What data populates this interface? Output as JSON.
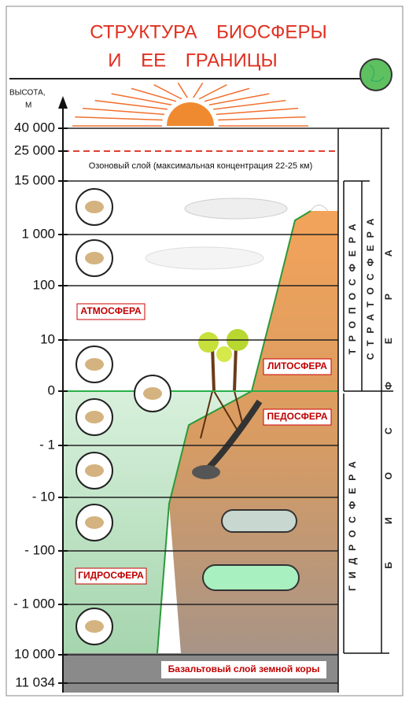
{
  "title": {
    "line1": "СТРУКТУРА БИОСФЕРЫ",
    "line2": "И ЕЕ ГРАНИЦЫ"
  },
  "axis": {
    "label_line1": "ВЫСОТА,",
    "label_line2": "М",
    "ticks": [
      "40 000",
      "25 000",
      "15 000",
      "1 000",
      "100",
      "10",
      "0",
      "- 1",
      "- 10",
      "- 100",
      "- 1 000",
      "10 000",
      "11 034"
    ]
  },
  "ozone_label": "Озоновый слой (максимальная концентрация 22-25 км)",
  "zones": {
    "atmosphere": "АТМОСФЕРА",
    "lithosphere": "ЛИТОСФЕРА",
    "pedosphere": "ПЕДОСФЕРА",
    "hydrosphere": "ГИДРОСФЕРА",
    "basalt": "Базальтовый слой земной коры"
  },
  "columns": {
    "troposphere": "ТРОПОСФЕРА",
    "stratosphere": "СТРАТОСФЕРА",
    "hydrosphere": "ГИДРОСФЕРА",
    "biosphere": "БИОСФЕРА"
  }
}
